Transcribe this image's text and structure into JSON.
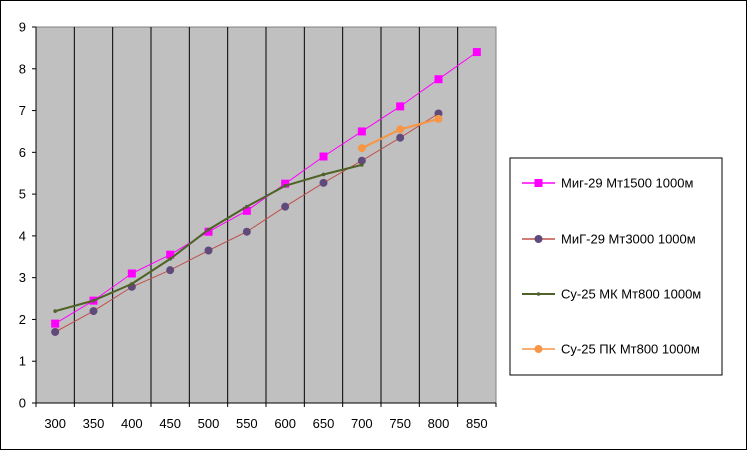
{
  "chart_data": {
    "type": "line",
    "x": [
      300,
      350,
      400,
      450,
      500,
      550,
      600,
      650,
      700,
      750,
      800,
      850
    ],
    "ylim": [
      0,
      9
    ],
    "y_ticks": [
      0,
      1,
      2,
      3,
      4,
      5,
      6,
      7,
      8,
      9
    ],
    "grid": "vertical",
    "legend_position": "right",
    "colors": {
      "plot_background": "#c0c0c0",
      "grid": "#000000"
    },
    "series": [
      {
        "name": "Миг-29 Мт1500 1000м",
        "color": "#ff00ff",
        "marker": "square",
        "x": [
          300,
          350,
          400,
          450,
          500,
          550,
          600,
          650,
          700,
          750,
          800,
          850
        ],
        "values": [
          1.9,
          2.45,
          3.1,
          3.55,
          4.1,
          4.6,
          5.25,
          5.9,
          6.5,
          7.1,
          7.75,
          8.4
        ]
      },
      {
        "name": "МиГ-29 Мт3000 1000м",
        "color": "#604a7b",
        "line_color": "#c0504d",
        "marker": "circle",
        "x": [
          300,
          350,
          400,
          450,
          500,
          550,
          600,
          650,
          700,
          750,
          800
        ],
        "values": [
          1.7,
          2.2,
          2.78,
          3.18,
          3.65,
          4.1,
          4.7,
          5.27,
          5.8,
          6.35,
          6.93
        ]
      },
      {
        "name": "Су-25 МК Мт800 1000м",
        "color": "#4f6228",
        "marker": "dot",
        "x": [
          300,
          350,
          400,
          450,
          500,
          550,
          600,
          650,
          700
        ],
        "values": [
          2.2,
          2.45,
          2.85,
          3.45,
          4.15,
          4.7,
          5.2,
          5.47,
          5.7
        ]
      },
      {
        "name": "Су-25 ПК Мт800 1000м",
        "color": "#f79646",
        "marker": "circle",
        "x": [
          700,
          750,
          800
        ],
        "values": [
          6.1,
          6.55,
          6.8
        ]
      }
    ]
  }
}
